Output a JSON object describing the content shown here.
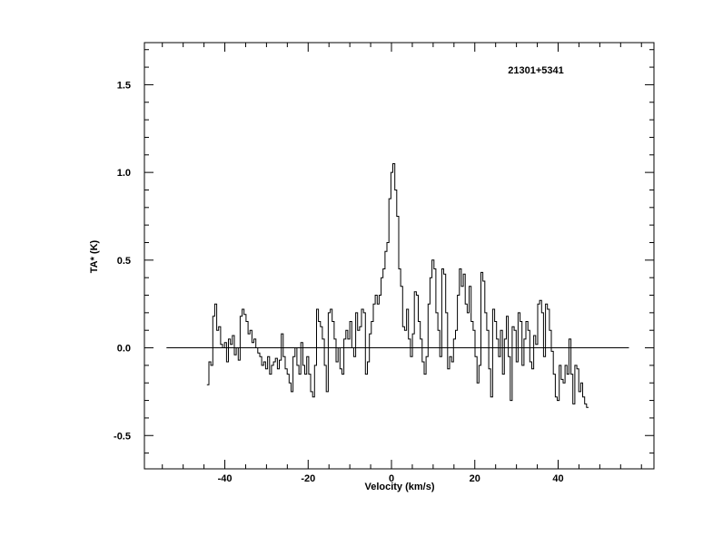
{
  "chart_data": {
    "type": "line",
    "style": "histogram",
    "title": "21301+5341",
    "xlabel": "Velocity (km/s)",
    "ylabel": "TA* (K)",
    "xlim": [
      -59.3,
      63.0
    ],
    "ylim": [
      -0.69,
      1.74
    ],
    "xticks": [
      -40,
      -20,
      0,
      20,
      40
    ],
    "xtick_labels": [
      "-40",
      "-20",
      "0",
      "20",
      "40"
    ],
    "yticks": [
      -0.5,
      0.0,
      0.5,
      1.0,
      1.5
    ],
    "ytick_labels": [
      "-0.5",
      "0.0",
      "0.5",
      "1.0",
      "1.5"
    ],
    "x_minor_step": 5,
    "y_minor_step": 0.1,
    "grid": false,
    "baseline": {
      "y": 0.0,
      "x_range": [
        -54,
        57
      ]
    },
    "velocity_range": [
      -44.3,
      47.3
    ],
    "values": [
      -0.21,
      -0.08,
      -0.1,
      0.18,
      0.25,
      0.1,
      0.12,
      0.02,
      0.0,
      0.03,
      -0.08,
      0.05,
      0.02,
      0.07,
      -0.04,
      0.0,
      -0.07,
      0.18,
      0.22,
      0.19,
      0.15,
      0.08,
      0.1,
      0.03,
      0.05,
      0.0,
      -0.03,
      -0.05,
      -0.1,
      -0.08,
      -0.12,
      -0.05,
      -0.15,
      -0.1,
      -0.08,
      -0.06,
      -0.12,
      -0.07,
      0.08,
      -0.05,
      -0.12,
      -0.15,
      -0.2,
      -0.25,
      -0.05,
      0.0,
      -0.1,
      -0.15,
      0.03,
      -0.1,
      -0.15,
      -0.05,
      -0.15,
      -0.25,
      -0.28,
      -0.1,
      0.22,
      0.15,
      0.12,
      0.05,
      -0.1,
      -0.25,
      0.2,
      0.22,
      0.15,
      0.05,
      -0.08,
      0.0,
      -0.12,
      -0.15,
      0.05,
      0.1,
      0.05,
      0.15,
      0.0,
      -0.05,
      0.2,
      0.1,
      0.12,
      0.22,
      0.2,
      -0.15,
      -0.08,
      0.08,
      0.15,
      0.25,
      0.3,
      0.25,
      0.3,
      0.4,
      0.45,
      0.55,
      0.6,
      0.85,
      1.0,
      1.05,
      0.9,
      0.75,
      0.45,
      0.35,
      0.12,
      0.1,
      0.22,
      0.05,
      -0.05,
      0.08,
      0.32,
      0.3,
      0.15,
      0.05,
      -0.08,
      -0.15,
      -0.05,
      0.25,
      0.4,
      0.5,
      0.45,
      0.2,
      0.1,
      -0.05,
      0.45,
      0.42,
      0.2,
      -0.12,
      -0.05,
      -0.08,
      0.05,
      0.1,
      0.3,
      0.45,
      0.35,
      0.42,
      0.25,
      0.2,
      0.35,
      0.15,
      0.1,
      -0.05,
      -0.2,
      -0.1,
      0.43,
      0.38,
      0.2,
      0.1,
      -0.12,
      -0.28,
      0.22,
      0.15,
      0.05,
      -0.05,
      0.1,
      -0.15,
      0.05,
      0.18,
      -0.05,
      -0.3,
      0.12,
      0.1,
      -0.08,
      0.2,
      0.15,
      -0.1,
      0.05,
      0.15,
      0.1,
      -0.08,
      -0.12,
      0.07,
      0.02,
      0.25,
      0.27,
      0.2,
      -0.05,
      0.25,
      0.22,
      0.1,
      -0.02,
      -0.15,
      -0.28,
      -0.3,
      -0.1,
      -0.18,
      -0.2,
      -0.1,
      -0.15,
      0.05,
      -0.15,
      -0.32,
      -0.1,
      -0.12,
      -0.25,
      -0.2,
      -0.28,
      -0.32,
      -0.34
    ],
    "line_color": "#000000"
  }
}
